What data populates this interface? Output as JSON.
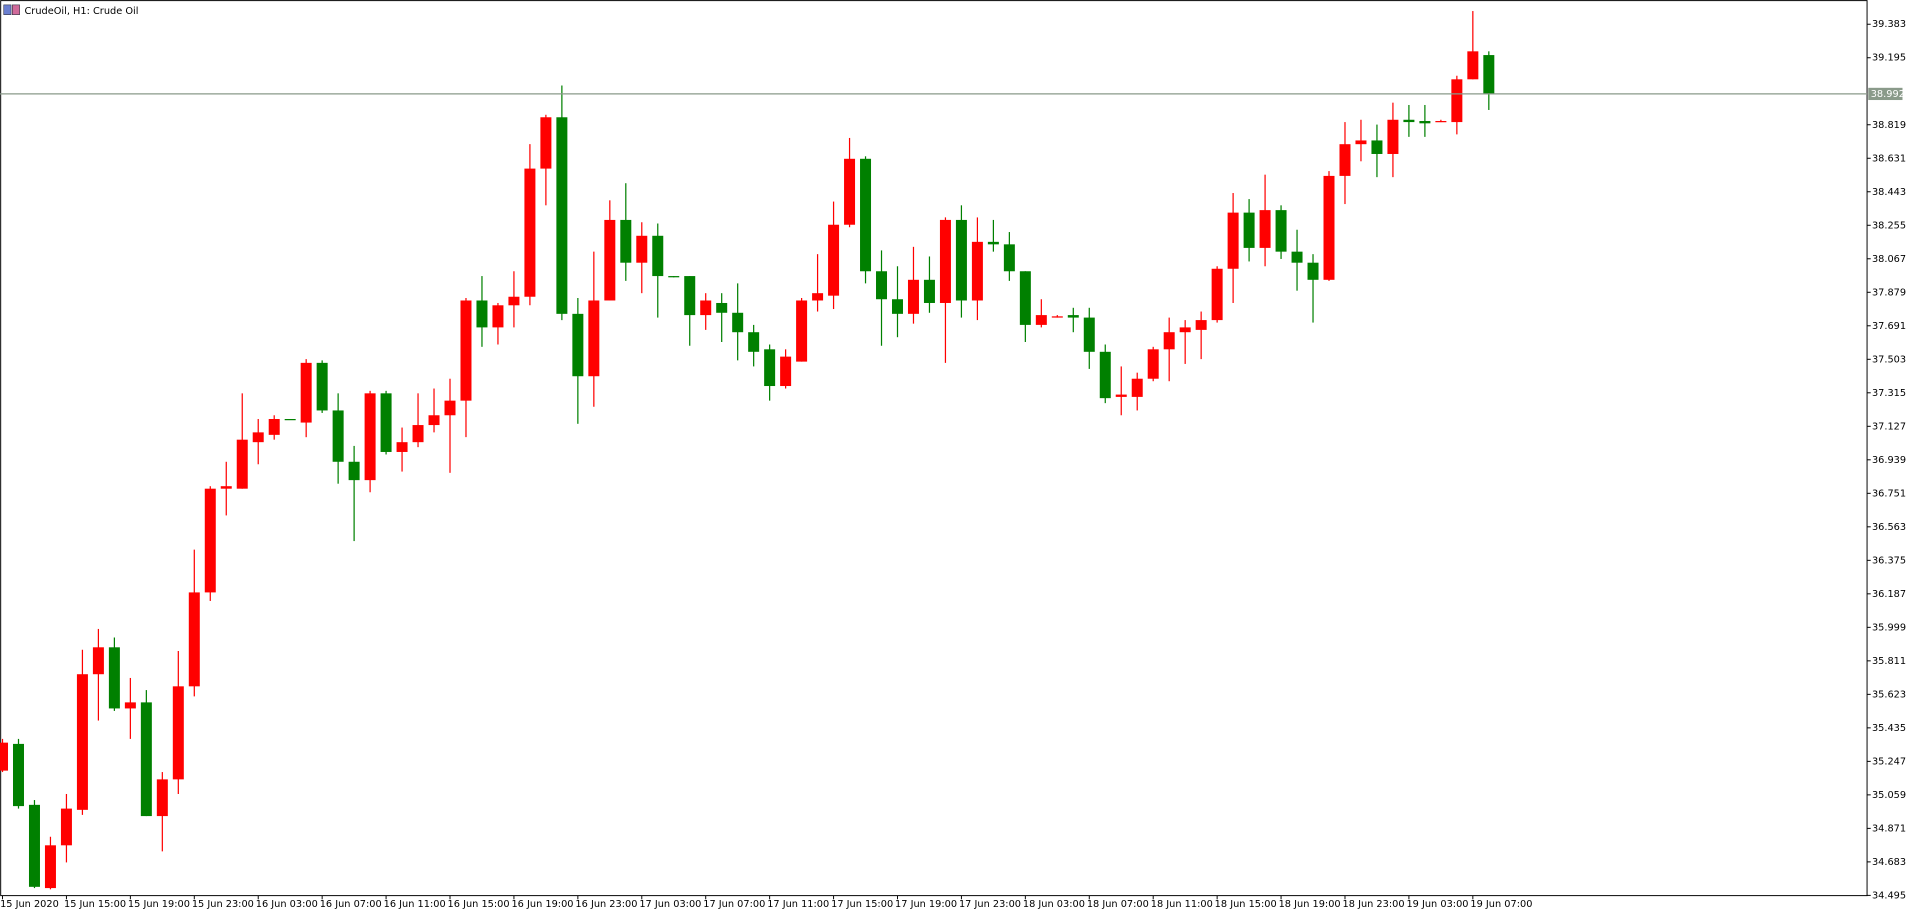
{
  "chart_data": {
    "type": "candlestick",
    "title": "CrudeOil, H1:  Crude Oil",
    "categories": [
      "15 Jun 2020",
      null,
      null,
      null,
      "15 Jun 15:00",
      null,
      null,
      null,
      "15 Jun 19:00",
      null,
      null,
      null,
      "15 Jun 23:00",
      null,
      null,
      null,
      "16 Jun 03:00",
      null,
      null,
      null,
      "16 Jun 07:00",
      null,
      null,
      null,
      "16 Jun 11:00",
      null,
      null,
      null,
      "16 Jun 15:00",
      null,
      null,
      null,
      "16 Jun 19:00",
      null,
      null,
      null,
      "16 Jun 23:00",
      null,
      null,
      null,
      "17 Jun 03:00",
      null,
      null,
      null,
      "17 Jun 07:00",
      null,
      null,
      null,
      "17 Jun 11:00",
      null,
      null,
      null,
      "17 Jun 15:00",
      null,
      null,
      null,
      "17 Jun 19:00",
      null,
      null,
      null,
      "17 Jun 23:00",
      null,
      null,
      null,
      "18 Jun 03:00",
      null,
      null,
      null,
      "18 Jun 07:00",
      null,
      null,
      null,
      "18 Jun 11:00",
      null,
      null,
      null,
      "18 Jun 15:00",
      null,
      null,
      null,
      "18 Jun 19:00",
      null,
      null,
      null,
      "18 Jun 23:00",
      null,
      null,
      null,
      "19 Jun 03:00",
      null,
      null,
      null,
      "19 Jun 07:00",
      null
    ],
    "open": [
      35.195,
      35.345,
      35.003,
      34.536,
      34.776,
      34.975,
      35.736,
      35.887,
      35.544,
      35.578,
      34.94,
      35.146,
      35.668,
      36.195,
      36.777,
      36.777,
      37.038,
      37.079,
      37.168,
      37.148,
      37.483,
      37.216,
      36.928,
      36.825,
      37.312,
      36.983,
      37.038,
      37.134,
      37.189,
      37.271,
      37.833,
      37.682,
      37.806,
      37.854,
      38.573,
      38.861,
      37.758,
      37.408,
      37.833,
      38.285,
      38.045,
      38.196,
      37.97,
      37.97,
      37.751,
      37.819,
      37.764,
      37.655,
      37.559,
      37.353,
      37.49,
      37.833,
      37.86,
      38.258,
      38.628,
      37.997,
      37.84,
      37.758,
      37.949,
      37.819,
      38.285,
      37.833,
      38.162,
      38.148,
      37.997,
      37.696,
      37.737,
      37.751,
      37.737,
      37.545,
      37.292,
      37.292,
      37.394,
      37.559,
      37.655,
      37.668,
      37.723,
      38.011,
      38.326,
      38.128,
      38.34,
      38.107,
      38.045,
      37.949,
      38.532,
      38.71,
      38.731,
      38.655,
      38.847,
      38.84,
      38.834,
      38.834,
      39.074,
      39.21
    ],
    "high": [
      35.373,
      35.373,
      35.03,
      34.824,
      35.064,
      35.873,
      35.99,
      35.942,
      35.715,
      35.647,
      35.187,
      35.866,
      36.435,
      36.791,
      36.928,
      37.312,
      37.168,
      37.189,
      37.168,
      37.504,
      37.497,
      37.312,
      37.017,
      37.326,
      37.326,
      37.12,
      37.312,
      37.339,
      37.394,
      37.847,
      37.97,
      37.819,
      37.997,
      38.71,
      38.875,
      39.039,
      37.847,
      38.107,
      38.395,
      38.491,
      38.272,
      38.265,
      37.97,
      37.97,
      37.874,
      37.874,
      37.929,
      37.696,
      37.586,
      37.559,
      37.847,
      38.093,
      38.388,
      38.745,
      38.642,
      38.114,
      38.025,
      38.134,
      38.08,
      38.299,
      38.367,
      38.299,
      38.285,
      38.217,
      37.997,
      37.84,
      37.751,
      37.792,
      37.792,
      37.586,
      37.463,
      37.428,
      37.573,
      37.737,
      37.723,
      37.771,
      38.025,
      38.436,
      38.402,
      38.539,
      38.367,
      38.23,
      38.093,
      38.559,
      38.834,
      38.847,
      38.82,
      38.943,
      38.93,
      38.93,
      38.847,
      39.094,
      39.457,
      39.231
    ],
    "low": [
      35.187,
      34.982,
      34.536,
      34.529,
      34.68,
      34.947,
      35.476,
      35.53,
      35.373,
      34.94,
      34.742,
      35.064,
      35.612,
      36.147,
      36.627,
      36.777,
      36.914,
      37.052,
      37.165,
      37.066,
      37.202,
      36.805,
      36.483,
      36.757,
      36.969,
      36.873,
      37.01,
      37.093,
      36.866,
      37.066,
      37.573,
      37.586,
      37.682,
      37.806,
      38.367,
      37.723,
      37.141,
      37.237,
      37.833,
      37.943,
      37.874,
      37.737,
      37.963,
      37.579,
      37.668,
      37.6,
      37.497,
      37.463,
      37.271,
      37.339,
      37.49,
      37.771,
      37.785,
      38.244,
      37.929,
      37.579,
      37.627,
      37.703,
      37.764,
      37.483,
      37.737,
      37.723,
      38.107,
      37.943,
      37.6,
      37.682,
      37.737,
      37.655,
      37.449,
      37.257,
      37.189,
      37.216,
      37.38,
      37.38,
      37.477,
      37.504,
      37.709,
      37.819,
      38.052,
      38.025,
      38.066,
      37.888,
      37.709,
      37.943,
      38.374,
      38.614,
      38.525,
      38.525,
      38.751,
      38.751,
      38.834,
      38.765,
      39.074,
      38.902
    ],
    "close": [
      35.352,
      34.996,
      34.543,
      34.776,
      34.982,
      35.736,
      35.887,
      35.544,
      35.578,
      34.94,
      35.146,
      35.668,
      36.195,
      36.777,
      36.791,
      37.052,
      37.093,
      37.168,
      37.165,
      37.483,
      37.216,
      36.928,
      36.825,
      37.312,
      36.983,
      37.038,
      37.134,
      37.189,
      37.271,
      37.833,
      37.682,
      37.806,
      37.854,
      38.573,
      38.861,
      37.758,
      37.408,
      37.833,
      38.285,
      38.045,
      38.196,
      37.97,
      37.963,
      37.751,
      37.833,
      37.764,
      37.655,
      37.545,
      37.353,
      37.518,
      37.833,
      37.874,
      38.258,
      38.628,
      37.997,
      37.84,
      37.758,
      37.949,
      37.819,
      38.285,
      37.833,
      38.162,
      38.148,
      37.997,
      37.696,
      37.751,
      37.744,
      37.737,
      37.545,
      37.285,
      37.305,
      37.394,
      37.559,
      37.655,
      37.682,
      37.723,
      38.011,
      38.326,
      38.128,
      38.34,
      38.107,
      38.045,
      37.949,
      38.532,
      38.71,
      38.731,
      38.655,
      38.847,
      38.834,
      38.827,
      38.84,
      39.074,
      39.231,
      38.992
    ],
    "up_color": "#ff0000",
    "down_color": "#008000",
    "current_price": 38.992,
    "current_price_color": "#8a9a8a",
    "ylim": [
      34.48,
      39.519
    ],
    "yticks": [
      34.495,
      34.683,
      34.871,
      35.059,
      35.247,
      35.435,
      35.623,
      35.811,
      35.999,
      36.187,
      36.375,
      36.563,
      36.751,
      36.939,
      37.127,
      37.315,
      37.503,
      37.691,
      37.879,
      38.067,
      38.255,
      38.443,
      38.631,
      38.819,
      39.195,
      39.383
    ]
  }
}
